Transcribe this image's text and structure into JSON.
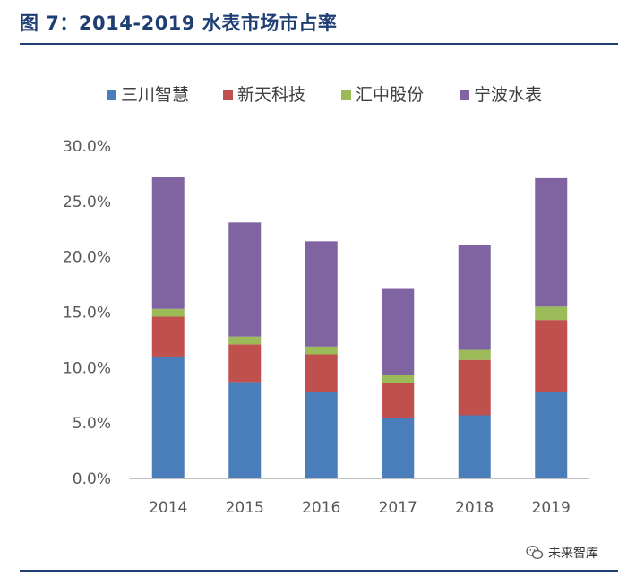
{
  "figure_title": "图 7：2014-2019 水表市场市占率",
  "watermark": {
    "text": "未来智库",
    "icon": "wechat-icon"
  },
  "colors": {
    "title": "#1f3f73",
    "series": [
      "#4a7ebb",
      "#c0504d",
      "#9bbb59",
      "#8064a2"
    ],
    "axis": "#bfbfbf",
    "text": "#595959"
  },
  "chart_data": {
    "type": "bar",
    "stacked": true,
    "title": "2014-2019 水表市场市占率",
    "xlabel": "",
    "ylabel": "",
    "categories": [
      "2014",
      "2015",
      "2016",
      "2017",
      "2018",
      "2019"
    ],
    "series": [
      {
        "name": "三川智慧",
        "values": [
          11.0,
          8.7,
          7.8,
          5.5,
          5.7,
          7.8
        ]
      },
      {
        "name": "新天科技",
        "values": [
          3.6,
          3.4,
          3.4,
          3.1,
          5.0,
          6.5
        ]
      },
      {
        "name": "汇中股份",
        "values": [
          0.7,
          0.7,
          0.7,
          0.7,
          0.9,
          1.2
        ]
      },
      {
        "name": "宁波水表",
        "values": [
          11.9,
          10.3,
          9.5,
          7.8,
          9.5,
          11.6
        ]
      }
    ],
    "ylim": [
      0,
      30
    ],
    "yticks": [
      "0.0%",
      "5.0%",
      "10.0%",
      "15.0%",
      "20.0%",
      "25.0%",
      "30.0%"
    ],
    "legend_position": "top"
  }
}
